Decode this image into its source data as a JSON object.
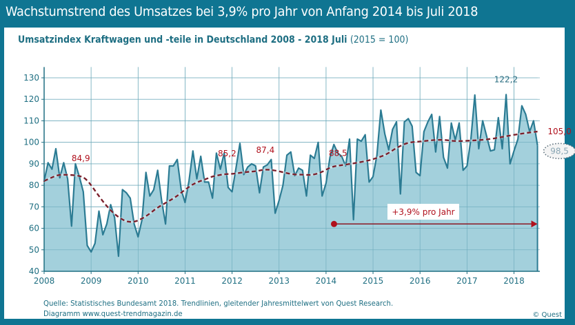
{
  "header": {
    "title": "Wachstumstrend des Umsatzes bei 3,9% pro Jahr von Anfang 2014 bis Juli 2018",
    "subtitle_main": "Umsatzindex Kraftwagen und -teile in Deutschland  2008 - 2018 Juli",
    "subtitle_paren": "(2015 = 100)"
  },
  "footer": {
    "source_line1": "Quelle: Statistisches Bundesamt 2018. Trendlinien, gleitender Jahresmittelwert von Quest Research.",
    "source_line2": "Diagramm  www.quest-trendmagazin.de",
    "copyright": "© Quest"
  },
  "colors": {
    "frame": "#0f7592",
    "area_fill": "#93c8d6",
    "series_line": "#2b7b93",
    "trend_line": "#7a1f2b",
    "annotation": "#b0101c",
    "grid": "#7fb3c2"
  },
  "chart_data": {
    "type": "area",
    "title": "Umsatzindex Kraftwagen und -teile in Deutschland 2008 - 2018 Juli (2015 = 100)",
    "xlabel": "",
    "ylabel": "",
    "x_start": "2008-01",
    "x_end": "2018-07",
    "xlim": [
      2008,
      2018.55
    ],
    "ylim": [
      40,
      135
    ],
    "x_ticks": [
      "2008",
      "2009",
      "2010",
      "2011",
      "2012",
      "2013",
      "2014",
      "2015",
      "2016",
      "2017",
      "2018"
    ],
    "y_ticks": [
      40,
      50,
      60,
      70,
      80,
      90,
      100,
      110,
      120,
      130
    ],
    "grid": true,
    "series": [
      {
        "name": "Umsatzindex (monatlich)",
        "frequency": "monthly",
        "values": [
          82,
          90.5,
          87.5,
          97,
          83.5,
          90.5,
          83,
          61,
          90,
          84,
          77,
          52,
          49,
          53,
          68,
          57,
          62,
          71,
          65,
          47,
          78,
          76.5,
          74,
          62,
          56,
          64,
          86,
          75,
          78,
          87,
          73,
          62,
          89,
          89,
          92,
          78,
          72,
          82,
          96,
          83,
          93.5,
          81.5,
          81.5,
          74,
          95,
          87.5,
          95,
          79,
          77,
          88,
          99.5,
          85,
          88.5,
          90,
          89,
          76.5,
          88.5,
          89.5,
          92,
          67,
          73,
          80,
          94,
          95.5,
          84.5,
          88,
          87,
          75,
          94,
          92.5,
          100,
          75,
          81,
          93,
          99,
          95,
          93.5,
          89,
          101.5,
          64,
          101.5,
          100.5,
          103.5,
          81.5,
          84,
          94,
          115,
          104,
          96.5,
          106,
          109.5,
          76,
          109.5,
          111,
          107.5,
          86,
          84.5,
          105,
          109.5,
          113,
          95.5,
          112,
          93,
          88,
          109,
          101,
          109,
          87,
          89,
          101.5,
          122,
          97,
          110,
          103,
          96,
          96.5,
          111.5,
          97,
          122.2,
          90,
          96,
          101.5,
          117,
          113,
          105,
          110,
          98.5
        ]
      },
      {
        "name": "Trendlinie (gleitender Jahresmittelwert)",
        "style": "dashed",
        "points": [
          [
            2008.0,
            82
          ],
          [
            2008.15,
            83.5
          ],
          [
            2008.3,
            84.9
          ],
          [
            2008.5,
            84.9
          ],
          [
            2008.75,
            84.5
          ],
          [
            2008.9,
            83
          ],
          [
            2009.1,
            77
          ],
          [
            2009.3,
            71
          ],
          [
            2009.5,
            66.5
          ],
          [
            2009.7,
            63.5
          ],
          [
            2009.85,
            62.8
          ],
          [
            2010.0,
            63.5
          ],
          [
            2010.2,
            66
          ],
          [
            2010.4,
            69.5
          ],
          [
            2010.6,
            72
          ],
          [
            2010.8,
            74.5
          ],
          [
            2011.0,
            78
          ],
          [
            2011.2,
            81
          ],
          [
            2011.4,
            82.5
          ],
          [
            2011.6,
            84.3
          ],
          [
            2011.85,
            85.2
          ],
          [
            2012.0,
            85.3
          ],
          [
            2012.3,
            86.2
          ],
          [
            2012.5,
            86.5
          ],
          [
            2012.7,
            87.4
          ],
          [
            2012.9,
            87
          ],
          [
            2013.1,
            86
          ],
          [
            2013.3,
            85
          ],
          [
            2013.5,
            85
          ],
          [
            2013.7,
            84.7
          ],
          [
            2013.9,
            86
          ],
          [
            2014.1,
            88.5
          ],
          [
            2014.3,
            89.3
          ],
          [
            2014.6,
            90.2
          ],
          [
            2014.9,
            91.5
          ],
          [
            2015.1,
            92.8
          ],
          [
            2015.3,
            94.5
          ],
          [
            2015.5,
            97.5
          ],
          [
            2015.75,
            100
          ],
          [
            2016.0,
            100.3
          ],
          [
            2016.25,
            101
          ],
          [
            2016.5,
            101.2
          ],
          [
            2016.75,
            100.5
          ],
          [
            2017.0,
            100.7
          ],
          [
            2017.25,
            101
          ],
          [
            2017.5,
            101.5
          ],
          [
            2017.75,
            102.5
          ],
          [
            2018.0,
            103.5
          ],
          [
            2018.25,
            104.3
          ],
          [
            2018.5,
            105.0
          ]
        ]
      }
    ],
    "annotations": [
      {
        "text": "84,9",
        "x": 2008.4,
        "y": 84.9,
        "series": "trend"
      },
      {
        "text": "85,2",
        "x": 2011.85,
        "y": 85.2,
        "series": "trend"
      },
      {
        "text": "87,4",
        "x": 2012.65,
        "y": 87.4,
        "series": "trend"
      },
      {
        "text": "88,5",
        "x": 2014.05,
        "y": 88.5,
        "series": "trend"
      },
      {
        "text": "122,2",
        "x": 2017.83,
        "y": 122.2,
        "series": "monthly"
      },
      {
        "text": "105,0",
        "x": 2018.5,
        "y": 105.0,
        "series": "trend"
      },
      {
        "text": "98,5",
        "x": 2018.5,
        "y": 98.5,
        "series": "monthly",
        "circled": true
      }
    ],
    "growth_arrow": {
      "label": "+3,9% pro Jahr",
      "x_from": 2014.17,
      "x_to": 2018.5,
      "y": 62
    }
  }
}
